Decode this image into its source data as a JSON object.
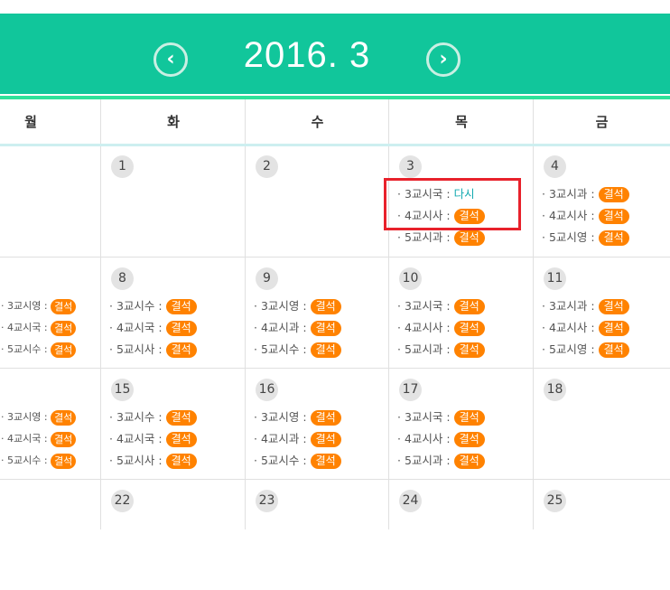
{
  "header": {
    "title": "2016. 3",
    "prev_icon": "chevron-left-circle-icon",
    "next_icon": "chevron-right-circle-icon"
  },
  "colors": {
    "header": "#11c69b",
    "badge": "#ff8200",
    "highlight": "#e8212b",
    "redo_text": "#11a9b0"
  },
  "weekdays": [
    "월",
    "화",
    "수",
    "목",
    "금"
  ],
  "weeks": [
    [
      {
        "day": "",
        "entries": []
      },
      {
        "day": "1",
        "entries": []
      },
      {
        "day": "2",
        "entries": []
      },
      {
        "day": "3",
        "entries": [
          {
            "label": "· 3교시국 :",
            "status": "다시",
            "type": "plain"
          },
          {
            "label": "· 4교시사 :",
            "status": "결석",
            "type": "badge"
          },
          {
            "label": "· 5교시과 :",
            "status": "결석",
            "type": "badge"
          }
        ]
      },
      {
        "day": "4",
        "entries": [
          {
            "label": "· 3교시과 :",
            "status": "결석",
            "type": "badge"
          },
          {
            "label": "· 4교시사 :",
            "status": "결석",
            "type": "badge"
          },
          {
            "label": "· 5교시영 :",
            "status": "결석",
            "type": "badge"
          }
        ]
      }
    ],
    [
      {
        "day": "",
        "entries": [
          {
            "label": "· 3교시영 :",
            "status": "결석",
            "type": "badge"
          },
          {
            "label": "· 4교시국 :",
            "status": "결석",
            "type": "badge"
          },
          {
            "label": "· 5교시수 :",
            "status": "결석",
            "type": "badge"
          }
        ]
      },
      {
        "day": "8",
        "entries": [
          {
            "label": "· 3교시수 :",
            "status": "결석",
            "type": "badge"
          },
          {
            "label": "· 4교시국 :",
            "status": "결석",
            "type": "badge"
          },
          {
            "label": "· 5교시사 :",
            "status": "결석",
            "type": "badge"
          }
        ]
      },
      {
        "day": "9",
        "entries": [
          {
            "label": "· 3교시영 :",
            "status": "결석",
            "type": "badge"
          },
          {
            "label": "· 4교시과 :",
            "status": "결석",
            "type": "badge"
          },
          {
            "label": "· 5교시수 :",
            "status": "결석",
            "type": "badge"
          }
        ]
      },
      {
        "day": "10",
        "entries": [
          {
            "label": "· 3교시국 :",
            "status": "결석",
            "type": "badge"
          },
          {
            "label": "· 4교시사 :",
            "status": "결석",
            "type": "badge"
          },
          {
            "label": "· 5교시과 :",
            "status": "결석",
            "type": "badge"
          }
        ]
      },
      {
        "day": "11",
        "entries": [
          {
            "label": "· 3교시과 :",
            "status": "결석",
            "type": "badge"
          },
          {
            "label": "· 4교시사 :",
            "status": "결석",
            "type": "badge"
          },
          {
            "label": "· 5교시영 :",
            "status": "결석",
            "type": "badge"
          }
        ]
      }
    ],
    [
      {
        "day": "",
        "entries": [
          {
            "label": "· 3교시영 :",
            "status": "결석",
            "type": "badge"
          },
          {
            "label": "· 4교시국 :",
            "status": "결석",
            "type": "badge"
          },
          {
            "label": "· 5교시수 :",
            "status": "결석",
            "type": "badge"
          }
        ]
      },
      {
        "day": "15",
        "entries": [
          {
            "label": "· 3교시수 :",
            "status": "결석",
            "type": "badge"
          },
          {
            "label": "· 4교시국 :",
            "status": "결석",
            "type": "badge"
          },
          {
            "label": "· 5교시사 :",
            "status": "결석",
            "type": "badge"
          }
        ]
      },
      {
        "day": "16",
        "entries": [
          {
            "label": "· 3교시영 :",
            "status": "결석",
            "type": "badge"
          },
          {
            "label": "· 4교시과 :",
            "status": "결석",
            "type": "badge"
          },
          {
            "label": "· 5교시수 :",
            "status": "결석",
            "type": "badge"
          }
        ]
      },
      {
        "day": "17",
        "entries": [
          {
            "label": "· 3교시국 :",
            "status": "결석",
            "type": "badge"
          },
          {
            "label": "· 4교시사 :",
            "status": "결석",
            "type": "badge"
          },
          {
            "label": "· 5교시과 :",
            "status": "결석",
            "type": "badge"
          }
        ]
      },
      {
        "day": "18",
        "entries": []
      }
    ],
    [
      {
        "day": "",
        "entries": []
      },
      {
        "day": "22",
        "entries": []
      },
      {
        "day": "23",
        "entries": []
      },
      {
        "day": "24",
        "entries": []
      },
      {
        "day": "25",
        "entries": []
      }
    ]
  ]
}
